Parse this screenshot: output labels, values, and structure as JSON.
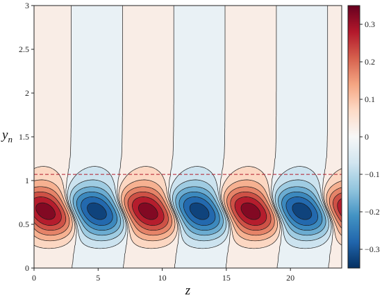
{
  "chart_data": {
    "type": "contour",
    "title": "",
    "xlabel": "z",
    "ylabel": "y_n",
    "xlim": [
      0,
      24
    ],
    "ylim": [
      0,
      3
    ],
    "x_ticks": [
      "0",
      "5",
      "10",
      "15",
      "20"
    ],
    "y_ticks": [
      "0",
      "0.5",
      "1",
      "1.5",
      "2",
      "2.5",
      "3"
    ],
    "colorbar": {
      "range": [
        -0.35,
        0.35
      ],
      "ticks": [
        "0.3",
        "0.2",
        "0.1",
        "0",
        "−0.1",
        "−0.2",
        "−0.3"
      ],
      "colormap": "RdBu_r",
      "colors": {
        "min": "#053061",
        "mid": "#f7f7f7",
        "max": "#67001f"
      }
    },
    "pattern": {
      "wavelength_z": 8,
      "first_positive_peak_z": 0.9,
      "peak_value": 0.33,
      "core_center_y": 0.65,
      "upper_amplitude": 0.03,
      "contour_levels": [
        -0.3,
        -0.25,
        -0.2,
        -0.15,
        -0.1,
        -0.05,
        0,
        0.05,
        0.1,
        0.15,
        0.2,
        0.25,
        0.3
      ]
    },
    "reference_line": {
      "y": 1.07,
      "style": "dashed",
      "color": "#b2182b"
    },
    "grid": false
  }
}
